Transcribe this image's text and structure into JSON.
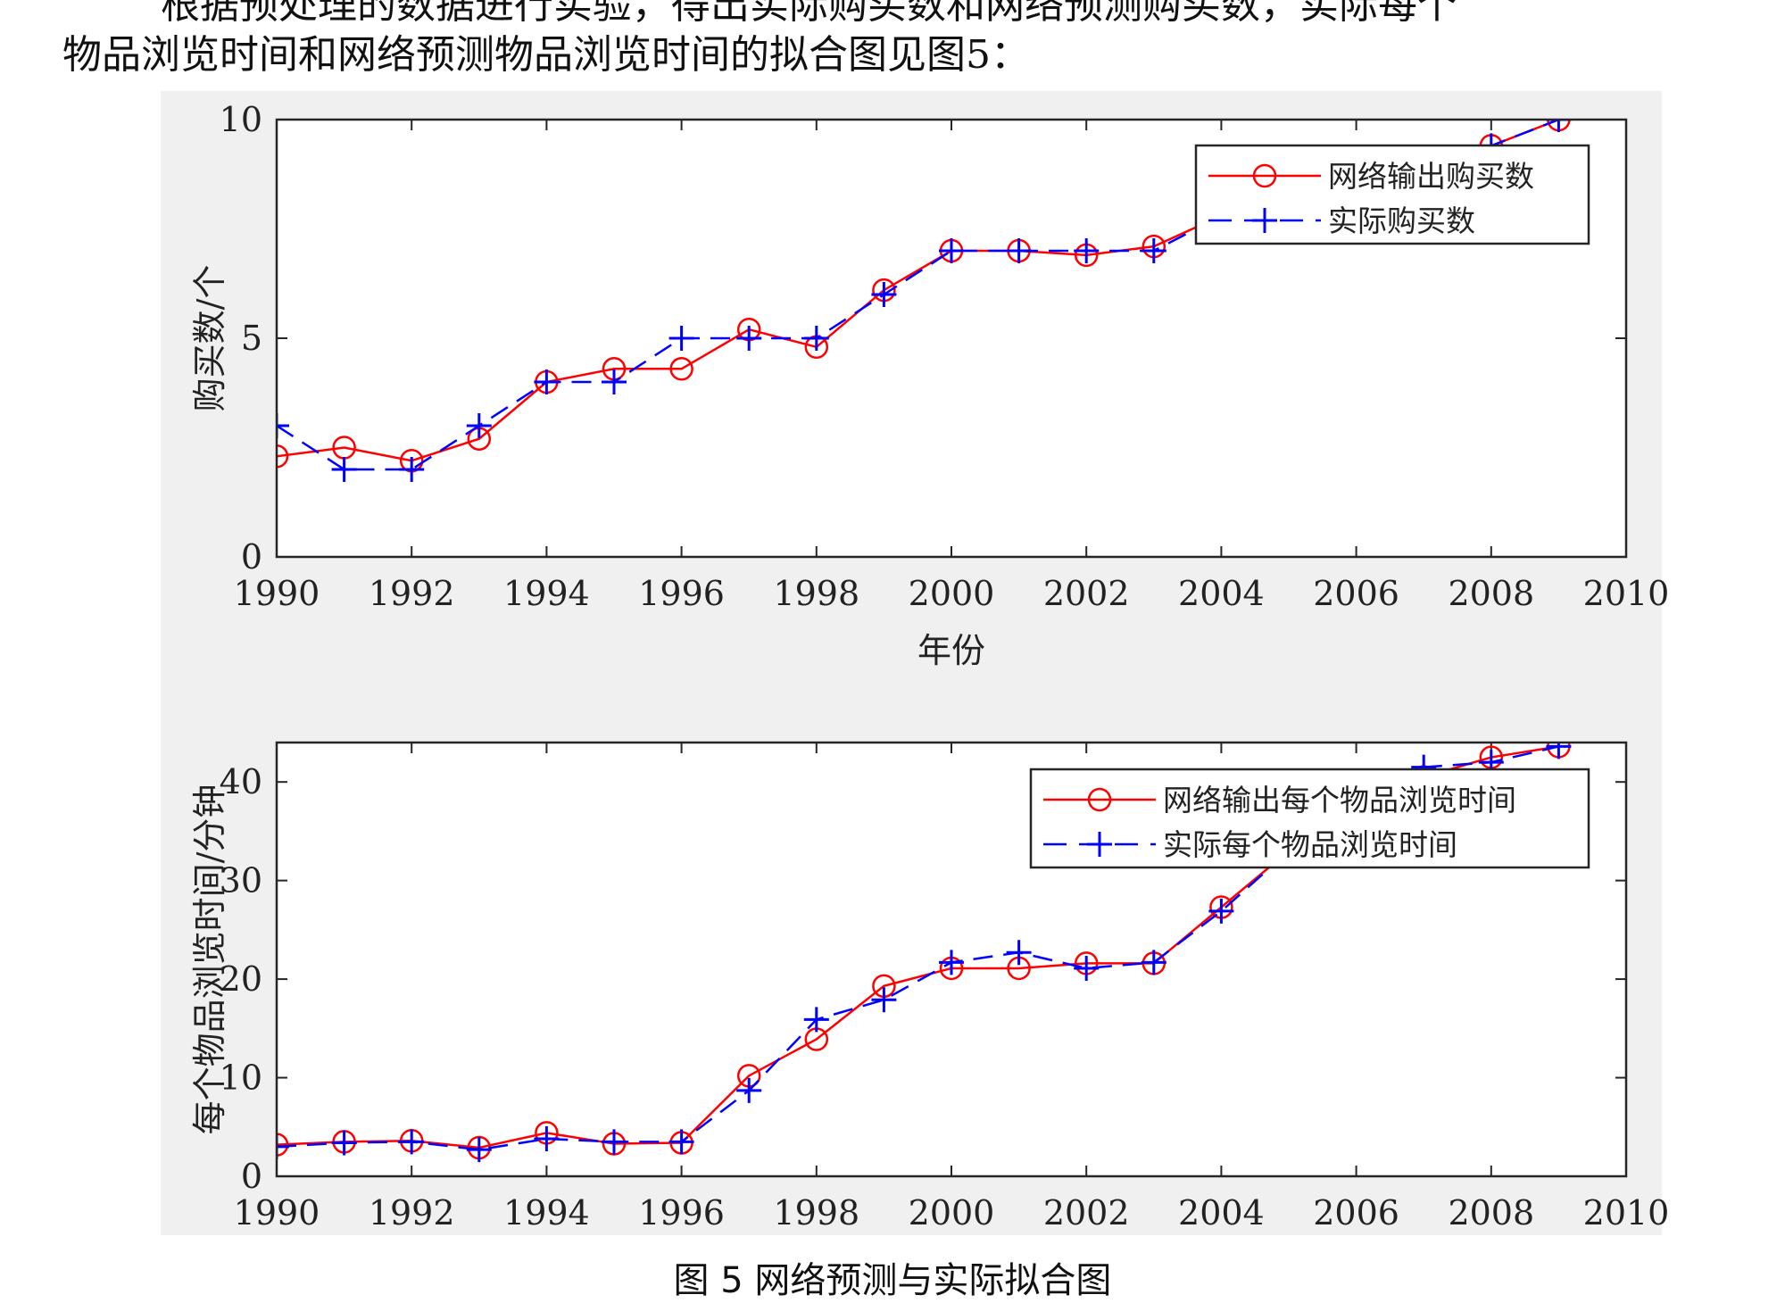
{
  "paragraph": {
    "line1": "根据预处理的数据进行实验，得出实际购买数和网络预测购买数，实际每个",
    "line2": "物品浏览时间和网络预测物品浏览时间的拟合图见图5："
  },
  "caption": "图 5  网络预测与实际拟合图",
  "colors": {
    "predicted": "#ff0000",
    "actual": "#0000ff",
    "panel_bg": "#f0f0f0"
  },
  "chart_data": [
    {
      "type": "line",
      "xlabel": "年份",
      "ylabel": "购买数/个",
      "xlim": [
        1990,
        2010
      ],
      "ylim": [
        0,
        10
      ],
      "xticks": [
        1990,
        1992,
        1994,
        1996,
        1998,
        2000,
        2002,
        2004,
        2006,
        2008,
        2010
      ],
      "yticks": [
        0,
        5,
        10
      ],
      "x": [
        1990,
        1991,
        1992,
        1993,
        1994,
        1995,
        1996,
        1997,
        1998,
        1999,
        2000,
        2001,
        2002,
        2003,
        2004,
        2005,
        2006,
        2007,
        2008,
        2009
      ],
      "series": [
        {
          "name": "网络输出购买数",
          "marker": "o",
          "line": "solid",
          "values": [
            2.3,
            2.5,
            2.2,
            2.7,
            4.0,
            4.3,
            4.3,
            5.2,
            4.8,
            6.1,
            7.0,
            7.0,
            6.9,
            7.1,
            7.8,
            8.2,
            8.6,
            9.0,
            9.4,
            10.0
          ]
        },
        {
          "name": "实际购买数",
          "marker": "+",
          "line": "dashed",
          "values": [
            3.0,
            2.0,
            2.0,
            3.0,
            4.0,
            4.0,
            5.0,
            5.0,
            5.0,
            6.0,
            7.0,
            7.0,
            7.0,
            7.0,
            7.8,
            8.2,
            8.6,
            9.0,
            9.4,
            10.0
          ]
        }
      ]
    },
    {
      "type": "line",
      "xlabel": "",
      "ylabel": "每个物品浏览时间/分钟",
      "xlim": [
        1990,
        2010
      ],
      "ylim": [
        0,
        44
      ],
      "xticks": [
        1990,
        1992,
        1994,
        1996,
        1998,
        2000,
        2002,
        2004,
        2006,
        2008,
        2010
      ],
      "yticks": [
        0,
        10,
        20,
        30,
        40
      ],
      "x": [
        1990,
        1991,
        1992,
        1993,
        1994,
        1995,
        1996,
        1997,
        1998,
        1999,
        2000,
        2001,
        2002,
        2003,
        2004,
        2005,
        2006,
        2007,
        2008,
        2009
      ],
      "series": [
        {
          "name": "网络输出每个物品浏览时间",
          "marker": "o",
          "line": "solid",
          "values": [
            3.2,
            3.5,
            3.6,
            2.9,
            4.4,
            3.3,
            3.4,
            10.2,
            13.9,
            19.3,
            21.1,
            21.1,
            21.6,
            21.6,
            27.3,
            33.0,
            37.5,
            40.5,
            42.5,
            43.6
          ]
        },
        {
          "name": "实际每个物品浏览时间",
          "marker": "+",
          "line": "dashed",
          "values": [
            3.0,
            3.4,
            3.5,
            2.7,
            3.8,
            3.5,
            3.5,
            8.7,
            15.9,
            17.9,
            21.7,
            22.7,
            21.1,
            21.7,
            26.9,
            33.0,
            37.5,
            41.5,
            42.0,
            43.6
          ]
        }
      ]
    }
  ]
}
